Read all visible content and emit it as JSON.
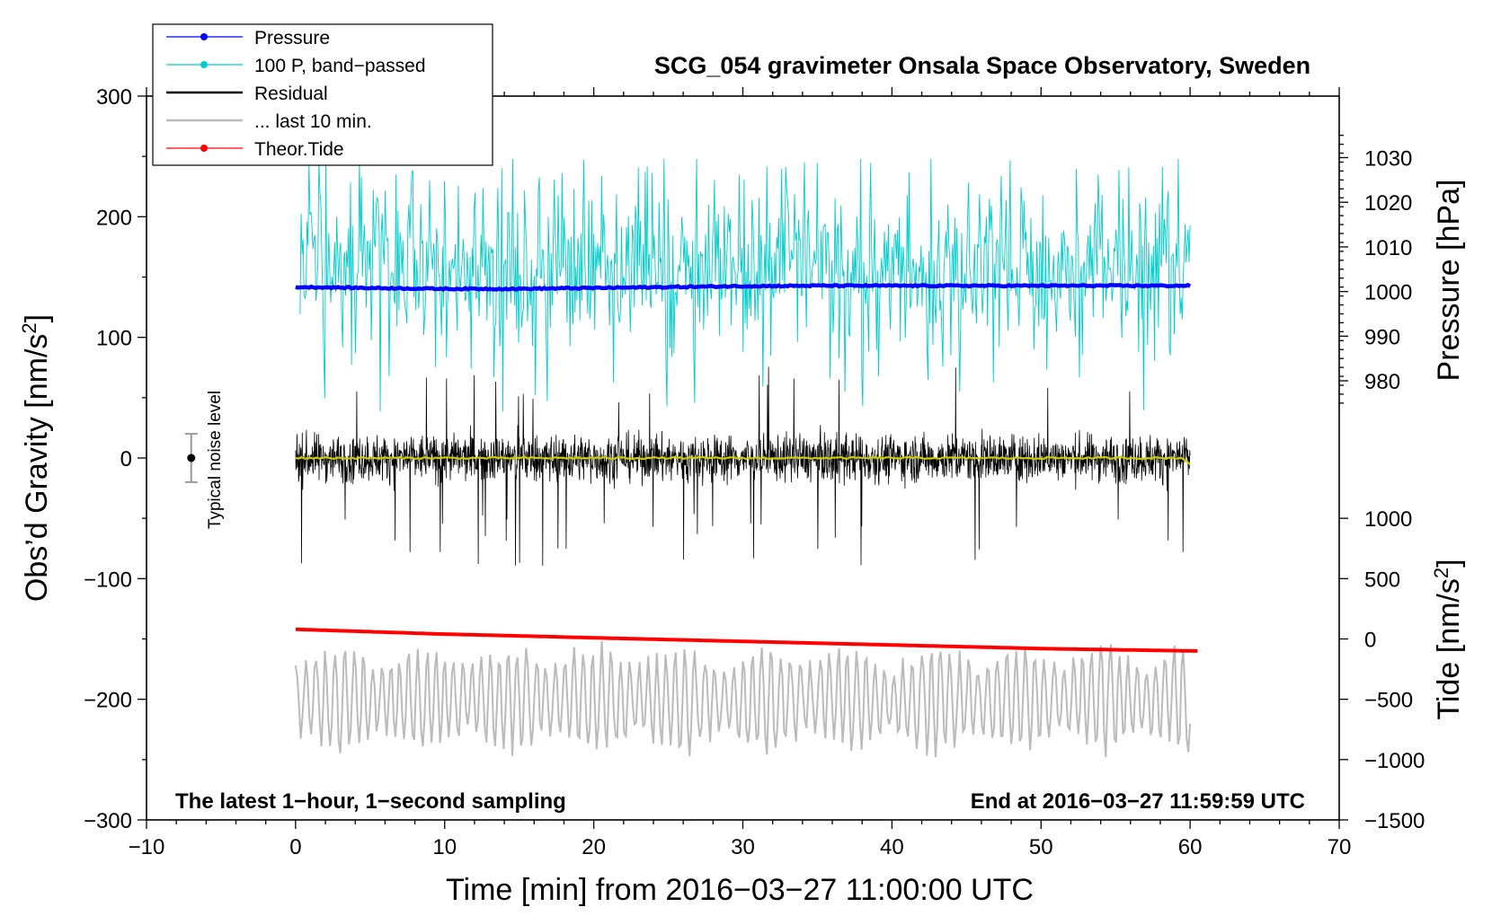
{
  "chart_data": {
    "type": "line",
    "title": "SCG_054 gravimeter Onsala Space Observatory, Sweden",
    "xlabel": "Time [min] from 2016−03−27 11:00:00 UTC",
    "ylabel_left": "Obs’d Gravity [nm/s",
    "ylabel_left_sup": "2",
    "ylabel_left_end": "]",
    "ylabel_right_top": "Pressure [hPa]",
    "ylabel_right_bottom": "Tide [nm/s",
    "ylabel_right_bottom_sup": "2",
    "ylabel_right_bottom_end": "]",
    "xlim": [
      -10,
      70
    ],
    "ylim_left": [
      -300,
      300
    ],
    "x_ticks": [
      -10,
      0,
      10,
      20,
      30,
      40,
      50,
      60,
      70
    ],
    "x_tick_labels": [
      "−10",
      "0",
      "10",
      "20",
      "30",
      "40",
      "50",
      "60",
      "70"
    ],
    "left_ticks": [
      300,
      200,
      100,
      0,
      -100,
      -200,
      -300
    ],
    "left_tick_labels": [
      "300",
      "200",
      "100",
      "0",
      "−100",
      "−200",
      "−300"
    ],
    "pressure_ticks": [
      1030,
      1020,
      1010,
      1000,
      990,
      980
    ],
    "pressure_tick_labels": [
      "1030",
      "1020",
      "1010",
      "1000",
      "990",
      "980"
    ],
    "tide_ticks": [
      1000,
      500,
      0,
      -500,
      -1000,
      -1500
    ],
    "tide_tick_labels": [
      "1000",
      "500",
      "0",
      "−500",
      "−1000",
      "−1500"
    ],
    "pressure_scale": {
      "ref_hpa": 1000,
      "ref_gravity": 138,
      "gravity_per_hpa": 3.7
    },
    "tide_scale": {
      "ref_tide": 0,
      "ref_gravity": -150,
      "gravity_per_unit": 0.1
    },
    "annotation_left": "The latest 1−hour, 1−second sampling",
    "annotation_right": "End at 2016−03−27 11:59:59 UTC",
    "noise_label": "Typical noise level",
    "noise_bar": {
      "x": -7,
      "center": 0,
      "half_range": 20
    },
    "legend": [
      {
        "label": "Pressure",
        "color": "#0000ff",
        "marker": true
      },
      {
        "label": "100 P, band−passed",
        "color": "#00cccc",
        "marker": true
      },
      {
        "label": "Residual",
        "color": "#000000",
        "marker": false
      },
      {
        "label": "... last 10 min.",
        "color": "#bbbbbb",
        "marker": false
      },
      {
        "label": "Theor.Tide",
        "color": "#ff0000",
        "marker": true
      }
    ],
    "series": [
      {
        "name": "Pressure",
        "axis": "pressure",
        "color": "#0000ff",
        "x": [
          0,
          5,
          10,
          15,
          20,
          25,
          30,
          35,
          40,
          45,
          50,
          55,
          60
        ],
        "values": [
          1001.0,
          1000.8,
          1000.6,
          1000.6,
          1000.8,
          1001.0,
          1001.2,
          1001.3,
          1001.3,
          1001.3,
          1001.3,
          1001.3,
          1001.3
        ]
      },
      {
        "name": "100 P, band−passed",
        "axis": "left",
        "color": "#00cccc",
        "center": 160,
        "amplitude": 45,
        "peak_max": 248,
        "peak_min": 38,
        "x_range": [
          0.3,
          60
        ]
      },
      {
        "name": "Residual",
        "axis": "left",
        "color": "#000000",
        "center": 0,
        "amplitude": 25,
        "peak_max": 77,
        "peak_min": -91,
        "x_range": [
          0,
          60
        ]
      },
      {
        "name": "Residual smoothed",
        "axis": "left",
        "color": "#cccc00",
        "x": [
          0,
          10,
          20,
          30,
          40,
          50,
          59.5,
          60
        ],
        "values": [
          0,
          0,
          0,
          0,
          0,
          0,
          0,
          -5
        ]
      },
      {
        "name": "... last 10 min.",
        "axis": "left",
        "color": "#bbbbbb",
        "center": -200,
        "amplitude": 28,
        "peak_max": -120,
        "peak_min": -255,
        "x_range": [
          0,
          60
        ]
      },
      {
        "name": "Theor.Tide",
        "axis": "tide",
        "color": "#ff0000",
        "x": [
          0,
          10,
          20,
          30,
          40,
          50,
          60.5
        ],
        "values": [
          80,
          40,
          10,
          -20,
          -50,
          -80,
          -100
        ]
      }
    ]
  }
}
